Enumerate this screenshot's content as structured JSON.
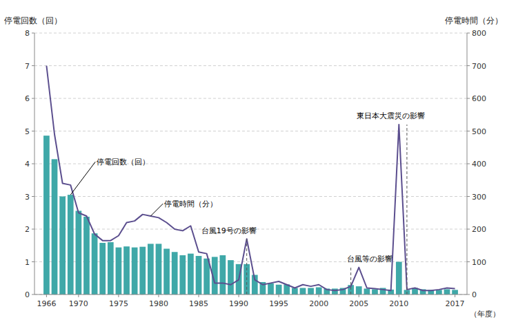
{
  "chart_data": {
    "type": "bar",
    "ylabel": "停電回数（回）",
    "y2label": "停電時間（分）",
    "xlabel": "（年度）",
    "x": [
      1966,
      1967,
      1968,
      1969,
      1970,
      1971,
      1972,
      1973,
      1974,
      1975,
      1976,
      1977,
      1978,
      1979,
      1980,
      1981,
      1982,
      1983,
      1984,
      1985,
      1986,
      1987,
      1988,
      1989,
      1990,
      1991,
      1992,
      1993,
      1994,
      1995,
      1996,
      1997,
      1998,
      1999,
      2000,
      2001,
      2002,
      2003,
      2004,
      2005,
      2006,
      2007,
      2008,
      2009,
      2010,
      2011,
      2012,
      2013,
      2014,
      2015,
      2016,
      2017
    ],
    "xlim": [
      1964.5,
      2018.5
    ],
    "xticks": [
      1966,
      1970,
      1975,
      1980,
      1985,
      1990,
      1995,
      2000,
      2005,
      2010,
      2017
    ],
    "ylim": [
      0,
      8
    ],
    "yticks": [
      0,
      1,
      2,
      3,
      4,
      5,
      6,
      7,
      8
    ],
    "y2lim": [
      0,
      800
    ],
    "y2ticks": [
      0,
      100,
      200,
      300,
      400,
      500,
      600,
      700,
      800
    ],
    "grid": true,
    "series": [
      {
        "name": "停電回数（回）",
        "type": "bar",
        "color": "#3FA8A8",
        "values": [
          4.86,
          4.14,
          3.0,
          3.05,
          2.56,
          2.38,
          1.87,
          1.58,
          1.6,
          1.44,
          1.47,
          1.44,
          1.46,
          1.55,
          1.55,
          1.4,
          1.3,
          1.2,
          1.25,
          1.18,
          1.1,
          1.15,
          1.2,
          1.05,
          0.93,
          0.93,
          0.6,
          0.38,
          0.34,
          0.3,
          0.31,
          0.2,
          0.2,
          0.2,
          0.22,
          0.18,
          0.18,
          0.2,
          0.29,
          0.25,
          0.18,
          0.16,
          0.2,
          0.15,
          1.0,
          0.14,
          0.2,
          0.16,
          0.14,
          0.14,
          0.16,
          0.14
        ]
      },
      {
        "name": "停電時間（分）",
        "type": "line",
        "color": "#5B4E8E",
        "axis": "y2",
        "values": [
          700,
          490,
          340,
          335,
          250,
          240,
          185,
          165,
          165,
          180,
          220,
          225,
          245,
          240,
          235,
          220,
          200,
          195,
          210,
          130,
          125,
          35,
          35,
          30,
          45,
          170,
          45,
          30,
          35,
          40,
          30,
          20,
          30,
          25,
          30,
          15,
          12,
          15,
          25,
          83,
          20,
          18,
          15,
          12,
          520,
          15,
          20,
          12,
          12,
          15,
          20,
          18
        ]
      }
    ],
    "annotations": [
      {
        "text": "台風19号の影響",
        "x": 1991,
        "y": 170,
        "axis": "y2"
      },
      {
        "text": "台風等の影響",
        "x": 2004,
        "y": 83,
        "axis": "y2"
      },
      {
        "text": "東日本大震災の影響",
        "x": 2011,
        "y": 520,
        "axis": "y2"
      }
    ]
  }
}
